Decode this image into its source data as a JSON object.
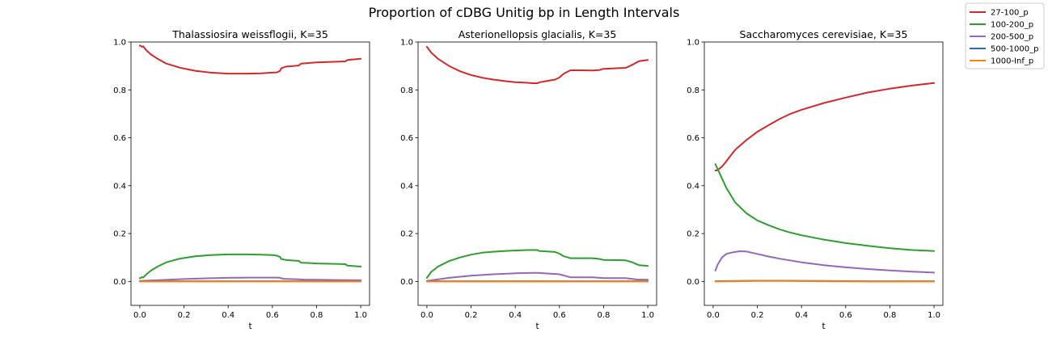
{
  "figure": {
    "suptitle": "Proportion of cDBG Unitig bp in Length Intervals",
    "legend": {
      "placement": "top-right outside",
      "entries": [
        {
          "label": "27-100_p",
          "color": "#d62728"
        },
        {
          "label": "100-200_p",
          "color": "#2ca02c"
        },
        {
          "label": "200-500_p",
          "color": "#9467bd"
        },
        {
          "label": "500-1000_p",
          "color": "#1f77b4"
        },
        {
          "label": "1000-Inf_p",
          "color": "#ff7f0e"
        }
      ]
    }
  },
  "chart_data": [
    {
      "type": "line",
      "title": "Thalassiosira weissflogii, K=35",
      "xlabel": "t",
      "ylabel": "",
      "xlim": [
        -0.04,
        1.04
      ],
      "ylim": [
        -0.1,
        1.0
      ],
      "xticks": [
        0.0,
        0.2,
        0.4,
        0.6,
        0.8,
        1.0
      ],
      "yticks": [
        0.0,
        0.2,
        0.4,
        0.6,
        0.8,
        1.0
      ],
      "grid": false,
      "series": [
        {
          "name": "27-100_p",
          "color": "#d62728",
          "x": [
            0.0,
            0.01,
            0.015,
            0.03,
            0.05,
            0.08,
            0.12,
            0.18,
            0.25,
            0.32,
            0.4,
            0.48,
            0.55,
            0.6,
            0.62,
            0.635,
            0.64,
            0.66,
            0.7,
            0.72,
            0.73,
            0.76,
            0.8,
            0.9,
            0.93,
            0.94,
            1.0
          ],
          "y": [
            0.985,
            0.98,
            0.982,
            0.965,
            0.948,
            0.93,
            0.91,
            0.893,
            0.88,
            0.872,
            0.868,
            0.868,
            0.869,
            0.872,
            0.873,
            0.88,
            0.89,
            0.897,
            0.9,
            0.902,
            0.91,
            0.912,
            0.915,
            0.918,
            0.919,
            0.925,
            0.93
          ]
        },
        {
          "name": "100-200_p",
          "color": "#2ca02c",
          "x": [
            0.0,
            0.01,
            0.015,
            0.03,
            0.05,
            0.08,
            0.12,
            0.18,
            0.25,
            0.32,
            0.4,
            0.48,
            0.55,
            0.6,
            0.62,
            0.635,
            0.64,
            0.66,
            0.7,
            0.72,
            0.73,
            0.76,
            0.8,
            0.9,
            0.93,
            0.94,
            1.0
          ],
          "y": [
            0.013,
            0.018,
            0.016,
            0.03,
            0.045,
            0.062,
            0.08,
            0.095,
            0.105,
            0.11,
            0.113,
            0.113,
            0.112,
            0.11,
            0.108,
            0.102,
            0.094,
            0.09,
            0.087,
            0.086,
            0.078,
            0.077,
            0.075,
            0.073,
            0.072,
            0.066,
            0.062
          ]
        },
        {
          "name": "200-500_p",
          "color": "#9467bd",
          "x": [
            0.0,
            0.1,
            0.2,
            0.3,
            0.4,
            0.5,
            0.6,
            0.63,
            0.65,
            0.72,
            0.75,
            0.8,
            0.9,
            1.0
          ],
          "y": [
            0.002,
            0.006,
            0.01,
            0.013,
            0.015,
            0.016,
            0.016,
            0.016,
            0.011,
            0.009,
            0.007,
            0.007,
            0.006,
            0.005
          ]
        },
        {
          "name": "500-1000_p",
          "color": "#1f77b4",
          "x": [
            0.0,
            0.25,
            0.5,
            0.75,
            1.0
          ],
          "y": [
            0.001,
            0.001,
            0.001,
            0.001,
            0.001
          ]
        },
        {
          "name": "1000-Inf_p",
          "color": "#ff7f0e",
          "x": [
            0.0,
            0.25,
            0.5,
            0.75,
            1.0
          ],
          "y": [
            0.0,
            0.0,
            0.0,
            0.0,
            0.0
          ]
        }
      ]
    },
    {
      "type": "line",
      "title": "Asterionellopsis glacialis, K=35",
      "xlabel": "t",
      "ylabel": "",
      "xlim": [
        -0.04,
        1.04
      ],
      "ylim": [
        -0.1,
        1.0
      ],
      "xticks": [
        0.0,
        0.2,
        0.4,
        0.6,
        0.8,
        1.0
      ],
      "yticks": [
        0.0,
        0.2,
        0.4,
        0.6,
        0.8,
        1.0
      ],
      "grid": false,
      "series": [
        {
          "name": "27-100_p",
          "color": "#d62728",
          "x": [
            0.0,
            0.02,
            0.05,
            0.1,
            0.15,
            0.2,
            0.25,
            0.3,
            0.35,
            0.4,
            0.45,
            0.48,
            0.5,
            0.51,
            0.53,
            0.58,
            0.6,
            0.62,
            0.65,
            0.7,
            0.75,
            0.78,
            0.8,
            0.85,
            0.9,
            0.93,
            0.96,
            1.0
          ],
          "y": [
            0.98,
            0.955,
            0.93,
            0.9,
            0.878,
            0.862,
            0.851,
            0.843,
            0.837,
            0.832,
            0.83,
            0.828,
            0.828,
            0.832,
            0.835,
            0.843,
            0.852,
            0.868,
            0.882,
            0.882,
            0.881,
            0.883,
            0.888,
            0.89,
            0.892,
            0.905,
            0.92,
            0.925
          ]
        },
        {
          "name": "100-200_p",
          "color": "#2ca02c",
          "x": [
            0.0,
            0.02,
            0.05,
            0.1,
            0.15,
            0.2,
            0.25,
            0.3,
            0.35,
            0.4,
            0.45,
            0.48,
            0.5,
            0.51,
            0.53,
            0.58,
            0.6,
            0.62,
            0.65,
            0.7,
            0.75,
            0.78,
            0.8,
            0.85,
            0.9,
            0.93,
            0.96,
            1.0
          ],
          "y": [
            0.015,
            0.04,
            0.062,
            0.085,
            0.1,
            0.112,
            0.12,
            0.124,
            0.127,
            0.129,
            0.131,
            0.131,
            0.131,
            0.127,
            0.126,
            0.123,
            0.116,
            0.105,
            0.097,
            0.097,
            0.097,
            0.094,
            0.09,
            0.089,
            0.088,
            0.08,
            0.068,
            0.065
          ]
        },
        {
          "name": "200-500_p",
          "color": "#9467bd",
          "x": [
            0.0,
            0.1,
            0.2,
            0.3,
            0.4,
            0.48,
            0.5,
            0.55,
            0.6,
            0.65,
            0.75,
            0.8,
            0.9,
            0.95,
            1.0
          ],
          "y": [
            0.002,
            0.015,
            0.024,
            0.03,
            0.034,
            0.036,
            0.036,
            0.033,
            0.03,
            0.017,
            0.017,
            0.014,
            0.014,
            0.008,
            0.007
          ]
        },
        {
          "name": "500-1000_p",
          "color": "#1f77b4",
          "x": [
            0.0,
            0.25,
            0.5,
            0.75,
            1.0
          ],
          "y": [
            0.001,
            0.001,
            0.001,
            0.001,
            0.001
          ]
        },
        {
          "name": "1000-Inf_p",
          "color": "#ff7f0e",
          "x": [
            0.0,
            0.25,
            0.5,
            0.75,
            1.0
          ],
          "y": [
            0.0,
            0.0,
            0.0,
            0.0,
            0.0
          ]
        }
      ]
    },
    {
      "type": "line",
      "title": "Saccharomyces cerevisiae, K=35",
      "xlabel": "t",
      "ylabel": "",
      "xlim": [
        -0.04,
        1.04
      ],
      "ylim": [
        -0.1,
        1.0
      ],
      "xticks": [
        0.0,
        0.2,
        0.4,
        0.6,
        0.8,
        1.0
      ],
      "yticks": [
        0.0,
        0.2,
        0.4,
        0.6,
        0.8,
        1.0
      ],
      "grid": false,
      "series": [
        {
          "name": "27-100_p",
          "color": "#d62728",
          "x": [
            0.01,
            0.02,
            0.04,
            0.06,
            0.08,
            0.1,
            0.15,
            0.2,
            0.25,
            0.3,
            0.35,
            0.4,
            0.5,
            0.6,
            0.7,
            0.8,
            0.9,
            1.0
          ],
          "y": [
            0.463,
            0.465,
            0.48,
            0.502,
            0.527,
            0.55,
            0.59,
            0.625,
            0.652,
            0.678,
            0.7,
            0.717,
            0.745,
            0.768,
            0.789,
            0.805,
            0.818,
            0.829
          ]
        },
        {
          "name": "100-200_p",
          "color": "#2ca02c",
          "x": [
            0.01,
            0.02,
            0.04,
            0.06,
            0.08,
            0.1,
            0.15,
            0.2,
            0.25,
            0.3,
            0.35,
            0.4,
            0.5,
            0.6,
            0.7,
            0.8,
            0.9,
            1.0
          ],
          "y": [
            0.49,
            0.47,
            0.43,
            0.39,
            0.36,
            0.33,
            0.285,
            0.255,
            0.235,
            0.218,
            0.204,
            0.193,
            0.175,
            0.16,
            0.149,
            0.139,
            0.131,
            0.127
          ]
        },
        {
          "name": "200-500_p",
          "color": "#9467bd",
          "x": [
            0.01,
            0.02,
            0.04,
            0.06,
            0.08,
            0.1,
            0.12,
            0.15,
            0.2,
            0.25,
            0.3,
            0.4,
            0.5,
            0.6,
            0.7,
            0.8,
            0.9,
            1.0
          ],
          "y": [
            0.045,
            0.07,
            0.1,
            0.115,
            0.12,
            0.123,
            0.126,
            0.125,
            0.115,
            0.104,
            0.095,
            0.08,
            0.068,
            0.059,
            0.052,
            0.046,
            0.041,
            0.037
          ]
        },
        {
          "name": "500-1000_p",
          "color": "#1f77b4",
          "x": [
            0.01,
            0.1,
            0.2,
            0.3,
            0.5,
            0.7,
            1.0
          ],
          "y": [
            0.001,
            0.002,
            0.003,
            0.003,
            0.002,
            0.001,
            0.001
          ]
        },
        {
          "name": "1000-Inf_p",
          "color": "#ff7f0e",
          "x": [
            0.01,
            0.1,
            0.2,
            0.3,
            0.5,
            0.7,
            1.0
          ],
          "y": [
            0.0,
            0.001,
            0.002,
            0.002,
            0.001,
            0.0,
            0.0
          ]
        }
      ]
    }
  ]
}
